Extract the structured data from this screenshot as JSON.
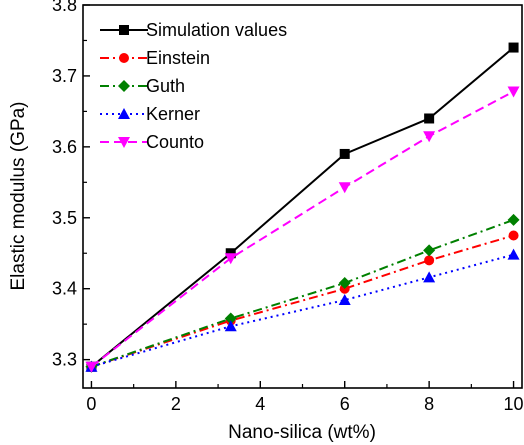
{
  "chart_data": {
    "type": "line",
    "title": "",
    "xlabel": "Nano-silica (wt%)",
    "ylabel": "Elastic modulus (GPa)",
    "xlim": [
      -0.2,
      10.2
    ],
    "ylim": [
      3.26,
      3.8
    ],
    "xticks": [
      0,
      2,
      4,
      6,
      8,
      10
    ],
    "yticks": [
      3.3,
      3.4,
      3.5,
      3.6,
      3.7,
      3.8
    ],
    "xtick_labels": [
      "0",
      "2",
      "4",
      "6",
      "8",
      "10"
    ],
    "ytick_labels": [
      "3.3",
      "3.4",
      "3.5",
      "3.6",
      "3.7",
      "3.8"
    ],
    "grid": false,
    "legend_position": "top-left",
    "x": [
      0,
      3.3,
      6,
      8,
      10
    ],
    "series": [
      {
        "name": "Simulation values",
        "values": [
          3.29,
          3.45,
          3.59,
          3.64,
          3.74
        ],
        "color": "#000000",
        "dash": "solid",
        "marker": "square"
      },
      {
        "name": "Einstein",
        "values": [
          3.29,
          3.355,
          3.4,
          3.44,
          3.475
        ],
        "color": "#ff0000",
        "dash": "dashdot",
        "marker": "circle"
      },
      {
        "name": "Guth",
        "values": [
          3.29,
          3.358,
          3.408,
          3.454,
          3.497
        ],
        "color": "#008000",
        "dash": "dashdot",
        "marker": "diamond"
      },
      {
        "name": "Kerner",
        "values": [
          3.29,
          3.347,
          3.384,
          3.416,
          3.448
        ],
        "color": "#0000ff",
        "dash": "dotted",
        "marker": "triangle-up"
      },
      {
        "name": "Counto",
        "values": [
          3.29,
          3.443,
          3.543,
          3.615,
          3.678
        ],
        "color": "#ff00ff",
        "dash": "dashed",
        "marker": "triangle-down"
      }
    ]
  }
}
